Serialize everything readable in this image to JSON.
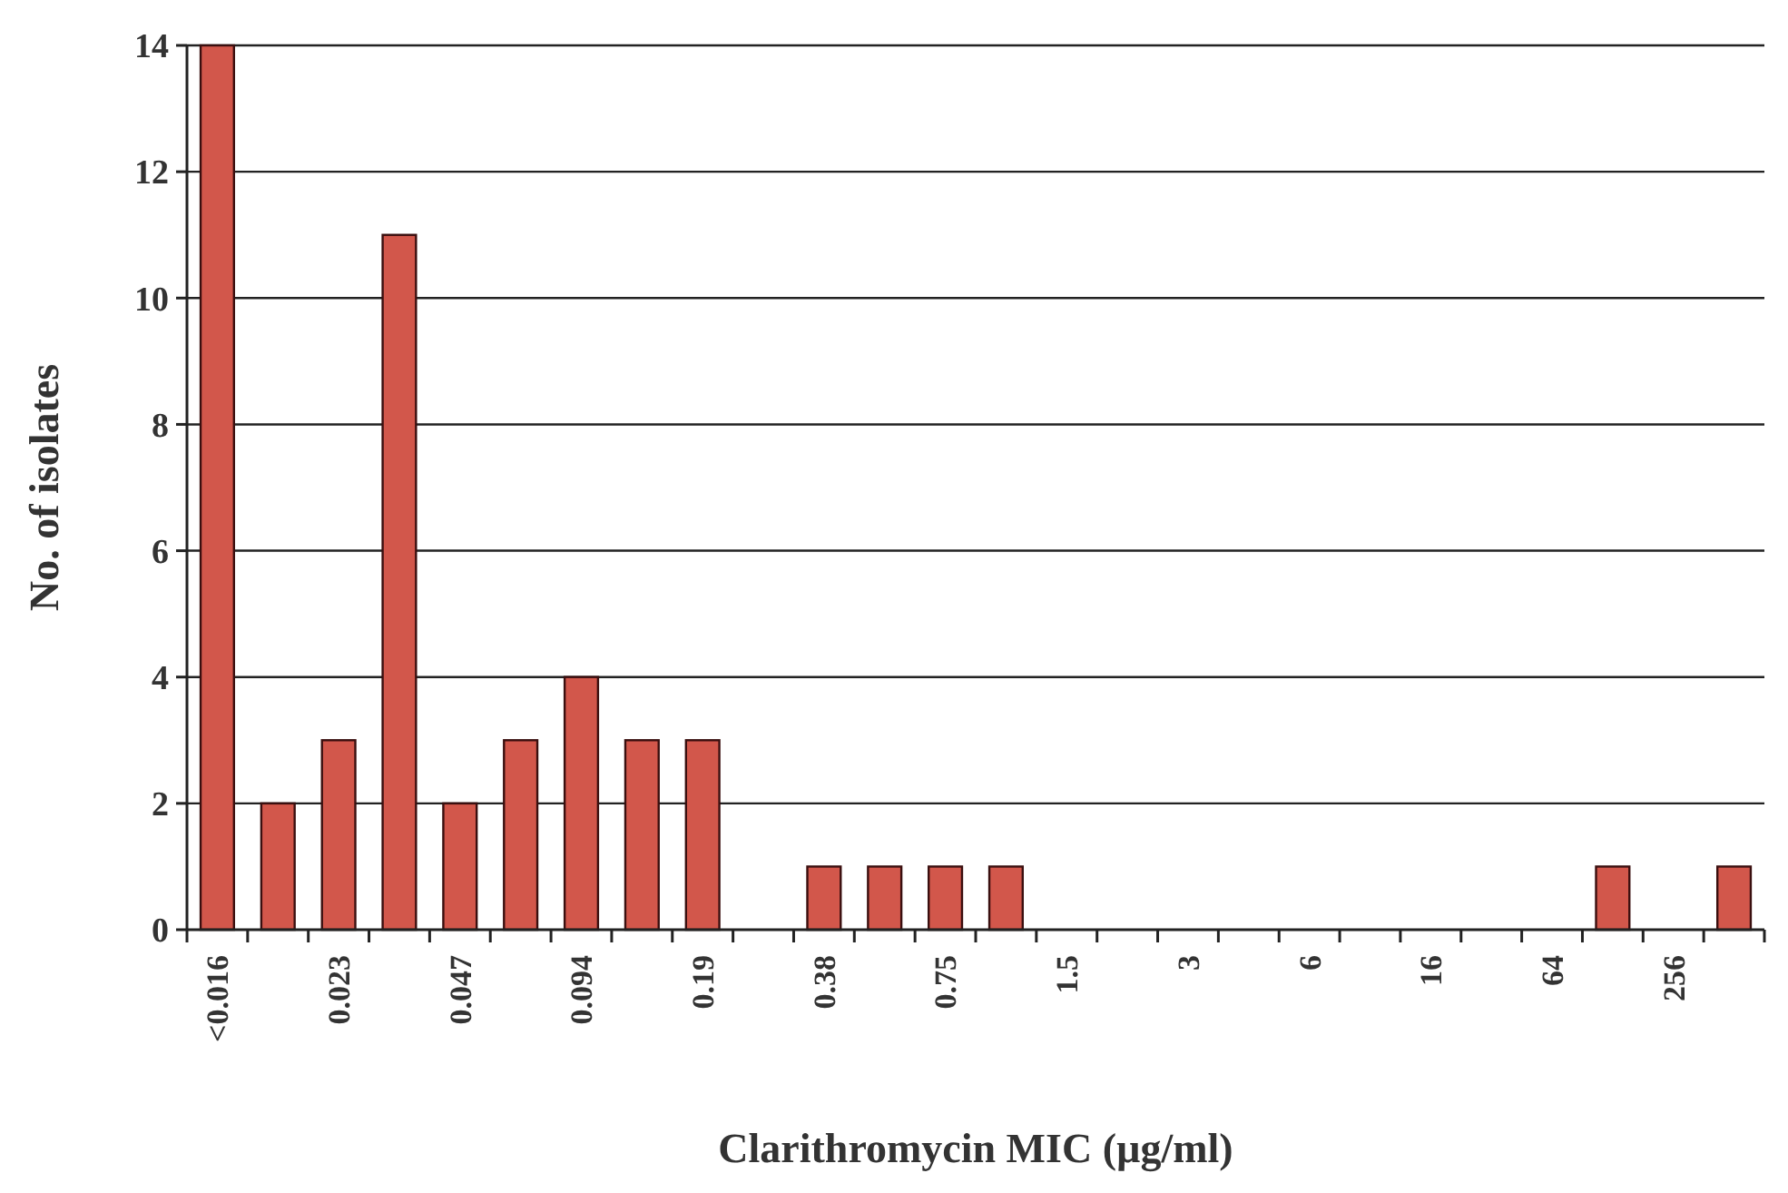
{
  "chart_data": {
    "type": "bar",
    "xlabel": "Clarithromycin MIC (µg/ml)",
    "ylabel": "No. of isolates",
    "categories": [
      "<0.016",
      null,
      "0.023",
      null,
      "0.047",
      null,
      "0.094",
      null,
      "0.19",
      null,
      "0.38",
      null,
      "0.75",
      null,
      "1.5",
      null,
      "3",
      null,
      "6",
      null,
      "16",
      null,
      "64",
      null,
      "256",
      null
    ],
    "values": [
      14,
      2,
      3,
      11,
      2,
      3,
      4,
      3,
      3,
      0,
      1,
      1,
      1,
      1,
      0,
      0,
      0,
      0,
      0,
      0,
      0,
      0,
      0,
      1,
      0,
      1
    ],
    "color": "#d2574b",
    "ylim": [
      0,
      14
    ],
    "yticks": [
      0,
      2,
      4,
      6,
      8,
      10,
      12,
      14
    ],
    "grid": "y"
  }
}
